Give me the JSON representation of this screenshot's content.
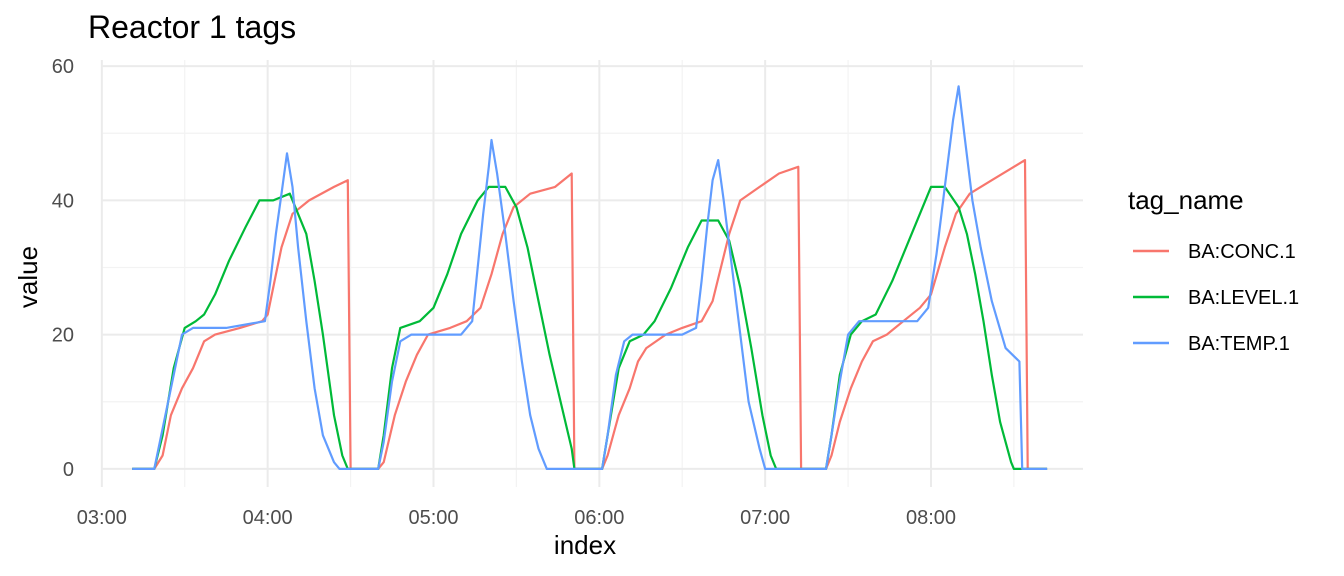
{
  "chart_data": {
    "type": "line",
    "title": "Reactor 1 tags",
    "xlabel": "index",
    "ylabel": "value",
    "ylim": [
      0,
      60
    ],
    "yticks": [
      0,
      20,
      40,
      60
    ],
    "xlim": [
      "02:55",
      "08:55"
    ],
    "xticks": [
      "03:00",
      "04:00",
      "05:00",
      "06:00",
      "07:00",
      "08:00"
    ],
    "grid": true,
    "legend": {
      "title": "tag_name",
      "position": "right"
    },
    "series": [
      {
        "name": "BA:CONC.1",
        "color": "#F8766D",
        "points": [
          [
            "03:11",
            0
          ],
          [
            "03:19",
            0
          ],
          [
            "03:22",
            2
          ],
          [
            "03:25",
            8
          ],
          [
            "03:29",
            12
          ],
          [
            "03:33",
            15
          ],
          [
            "03:37",
            19
          ],
          [
            "03:41",
            20
          ],
          [
            "03:50",
            21
          ],
          [
            "03:58",
            22
          ],
          [
            "04:00",
            23
          ],
          [
            "04:02",
            27
          ],
          [
            "04:05",
            33
          ],
          [
            "04:09",
            38
          ],
          [
            "04:15",
            40
          ],
          [
            "04:24",
            42
          ],
          [
            "04:29",
            43
          ],
          [
            "04:30",
            0
          ],
          [
            "04:40",
            0
          ],
          [
            "04:42",
            1
          ],
          [
            "04:46",
            8
          ],
          [
            "04:50",
            13
          ],
          [
            "04:54",
            17
          ],
          [
            "04:58",
            20
          ],
          [
            "05:06",
            21
          ],
          [
            "05:12",
            22
          ],
          [
            "05:17",
            24
          ],
          [
            "05:21",
            29
          ],
          [
            "05:25",
            35
          ],
          [
            "05:29",
            39
          ],
          [
            "05:35",
            41
          ],
          [
            "05:44",
            42
          ],
          [
            "05:50",
            44
          ],
          [
            "05:51",
            0
          ],
          [
            "06:01",
            0
          ],
          [
            "06:03",
            2
          ],
          [
            "06:07",
            8
          ],
          [
            "06:11",
            12
          ],
          [
            "06:14",
            16
          ],
          [
            "06:17",
            18
          ],
          [
            "06:24",
            20
          ],
          [
            "06:30",
            21
          ],
          [
            "06:37",
            22
          ],
          [
            "06:41",
            25
          ],
          [
            "06:44",
            30
          ],
          [
            "06:47",
            35
          ],
          [
            "06:51",
            40
          ],
          [
            "06:58",
            42
          ],
          [
            "07:05",
            44
          ],
          [
            "07:12",
            45
          ],
          [
            "07:13",
            0
          ],
          [
            "07:22",
            0
          ],
          [
            "07:24",
            2
          ],
          [
            "07:27",
            7
          ],
          [
            "07:31",
            12
          ],
          [
            "07:35",
            16
          ],
          [
            "07:39",
            19
          ],
          [
            "07:44",
            20
          ],
          [
            "07:50",
            22
          ],
          [
            "07:56",
            24
          ],
          [
            "08:00",
            26
          ],
          [
            "08:05",
            33
          ],
          [
            "08:09",
            38
          ],
          [
            "08:14",
            41
          ],
          [
            "08:22",
            43
          ],
          [
            "08:30",
            45
          ],
          [
            "08:34",
            46
          ],
          [
            "08:35",
            0
          ],
          [
            "08:42",
            0
          ]
        ]
      },
      {
        "name": "BA:LEVEL.1",
        "color": "#00BA38",
        "points": [
          [
            "03:11",
            0
          ],
          [
            "03:19",
            0
          ],
          [
            "03:22",
            5
          ],
          [
            "03:26",
            15
          ],
          [
            "03:30",
            21
          ],
          [
            "03:34",
            22
          ],
          [
            "03:37",
            23
          ],
          [
            "03:41",
            26
          ],
          [
            "03:46",
            31
          ],
          [
            "03:52",
            36
          ],
          [
            "03:57",
            40
          ],
          [
            "04:02",
            40
          ],
          [
            "04:08",
            41
          ],
          [
            "04:10",
            39
          ],
          [
            "04:14",
            35
          ],
          [
            "04:17",
            28
          ],
          [
            "04:20",
            20
          ],
          [
            "04:24",
            8
          ],
          [
            "04:27",
            2
          ],
          [
            "04:29",
            0
          ],
          [
            "04:40",
            0
          ],
          [
            "04:42",
            5
          ],
          [
            "04:45",
            15
          ],
          [
            "04:48",
            21
          ],
          [
            "04:55",
            22
          ],
          [
            "05:00",
            24
          ],
          [
            "05:05",
            29
          ],
          [
            "05:10",
            35
          ],
          [
            "05:16",
            40
          ],
          [
            "05:20",
            42
          ],
          [
            "05:26",
            42
          ],
          [
            "05:30",
            39
          ],
          [
            "05:34",
            33
          ],
          [
            "05:38",
            25
          ],
          [
            "05:42",
            17
          ],
          [
            "05:46",
            10
          ],
          [
            "05:50",
            3
          ],
          [
            "05:51",
            0
          ],
          [
            "06:01",
            0
          ],
          [
            "06:03",
            5
          ],
          [
            "06:07",
            15
          ],
          [
            "06:11",
            19
          ],
          [
            "06:16",
            20
          ],
          [
            "06:20",
            22
          ],
          [
            "06:26",
            27
          ],
          [
            "06:32",
            33
          ],
          [
            "06:37",
            37
          ],
          [
            "06:43",
            37
          ],
          [
            "06:47",
            34
          ],
          [
            "06:51",
            27
          ],
          [
            "06:55",
            18
          ],
          [
            "06:59",
            8
          ],
          [
            "07:02",
            2
          ],
          [
            "07:04",
            0
          ],
          [
            "07:22",
            0
          ],
          [
            "07:24",
            5
          ],
          [
            "07:27",
            14
          ],
          [
            "07:31",
            20
          ],
          [
            "07:35",
            22
          ],
          [
            "07:40",
            23
          ],
          [
            "07:46",
            28
          ],
          [
            "07:52",
            34
          ],
          [
            "07:57",
            39
          ],
          [
            "08:00",
            42
          ],
          [
            "08:05",
            42
          ],
          [
            "08:10",
            39
          ],
          [
            "08:13",
            35
          ],
          [
            "08:16",
            29
          ],
          [
            "08:19",
            22
          ],
          [
            "08:22",
            14
          ],
          [
            "08:25",
            7
          ],
          [
            "08:29",
            1
          ],
          [
            "08:30",
            0
          ],
          [
            "08:42",
            0
          ]
        ]
      },
      {
        "name": "BA:TEMP.1",
        "color": "#619CFF",
        "points": [
          [
            "03:11",
            0
          ],
          [
            "03:19",
            0
          ],
          [
            "03:22",
            6
          ],
          [
            "03:26",
            14
          ],
          [
            "03:29",
            20
          ],
          [
            "03:33",
            21
          ],
          [
            "03:45",
            21
          ],
          [
            "03:59",
            22
          ],
          [
            "04:01",
            28
          ],
          [
            "04:03",
            35
          ],
          [
            "04:05",
            41
          ],
          [
            "04:07",
            47
          ],
          [
            "04:09",
            42
          ],
          [
            "04:11",
            33
          ],
          [
            "04:14",
            22
          ],
          [
            "04:17",
            12
          ],
          [
            "04:20",
            5
          ],
          [
            "04:24",
            1
          ],
          [
            "04:26",
            0
          ],
          [
            "04:40",
            0
          ],
          [
            "04:42",
            4
          ],
          [
            "04:45",
            13
          ],
          [
            "04:48",
            19
          ],
          [
            "04:52",
            20
          ],
          [
            "05:10",
            20
          ],
          [
            "05:14",
            22
          ],
          [
            "05:16",
            30
          ],
          [
            "05:18",
            38
          ],
          [
            "05:20",
            45
          ],
          [
            "05:21",
            49
          ],
          [
            "05:23",
            44
          ],
          [
            "05:26",
            35
          ],
          [
            "05:29",
            25
          ],
          [
            "05:32",
            16
          ],
          [
            "05:35",
            8
          ],
          [
            "05:38",
            3
          ],
          [
            "05:41",
            0
          ],
          [
            "06:01",
            0
          ],
          [
            "06:03",
            5
          ],
          [
            "06:06",
            14
          ],
          [
            "06:09",
            19
          ],
          [
            "06:12",
            20
          ],
          [
            "06:30",
            20
          ],
          [
            "06:35",
            21
          ],
          [
            "06:37",
            28
          ],
          [
            "06:39",
            36
          ],
          [
            "06:41",
            43
          ],
          [
            "06:43",
            46
          ],
          [
            "06:45",
            40
          ],
          [
            "06:48",
            30
          ],
          [
            "06:51",
            20
          ],
          [
            "06:54",
            10
          ],
          [
            "06:58",
            3
          ],
          [
            "07:00",
            0
          ],
          [
            "07:22",
            0
          ],
          [
            "07:24",
            5
          ],
          [
            "07:27",
            13
          ],
          [
            "07:30",
            20
          ],
          [
            "07:34",
            22
          ],
          [
            "07:55",
            22
          ],
          [
            "07:59",
            24
          ],
          [
            "08:02",
            32
          ],
          [
            "08:05",
            42
          ],
          [
            "08:08",
            52
          ],
          [
            "08:10",
            57
          ],
          [
            "08:12",
            50
          ],
          [
            "08:15",
            40
          ],
          [
            "08:18",
            33
          ],
          [
            "08:22",
            25
          ],
          [
            "08:27",
            18
          ],
          [
            "08:32",
            16
          ],
          [
            "08:33",
            0
          ],
          [
            "08:42",
            0
          ]
        ]
      }
    ]
  }
}
